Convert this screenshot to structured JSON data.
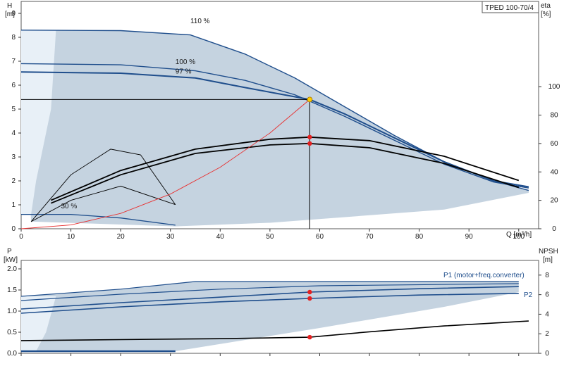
{
  "chart_data": [
    {
      "type": "line",
      "panel": "pump-head-efficiency",
      "title": "TPED 100-70/4",
      "xlabel": "Q [m³/h]",
      "ylabel_left": [
        "H",
        "[m]"
      ],
      "ylabel_right": [
        "eta",
        "[%]"
      ],
      "xlim": [
        0,
        104
      ],
      "ylim_left": [
        0,
        9.5
      ],
      "ylim_right": [
        0,
        160
      ],
      "x_ticks": [
        0,
        10,
        20,
        30,
        40,
        50,
        60,
        70,
        80,
        90,
        100
      ],
      "y_ticks_left": [
        0,
        1,
        2,
        3,
        4,
        5,
        6,
        7,
        8,
        9
      ],
      "y_ticks_right": [
        0,
        20,
        40,
        60,
        80,
        100
      ],
      "zone_color": "#c5d3e0",
      "zone_light_color": "#e8f0f7",
      "curve_color": "#1f4e8c",
      "eff_color": "#000000",
      "system_color": "#e83030",
      "operating_point": {
        "q": 58,
        "h": 5.4,
        "color": "#ffcc00"
      },
      "head_curves": [
        {
          "name": "110 %",
          "points": [
            [
              0,
              8.3
            ],
            [
              20,
              8.28
            ],
            [
              34,
              8.1
            ],
            [
              45,
              7.3
            ],
            [
              55,
              6.3
            ],
            [
              65,
              5.1
            ],
            [
              75,
              3.9
            ],
            [
              85,
              2.8
            ],
            [
              95,
              2.0
            ],
            [
              102,
              1.6
            ]
          ]
        },
        {
          "name": "100 %",
          "points": [
            [
              0,
              6.9
            ],
            [
              20,
              6.85
            ],
            [
              35,
              6.6
            ],
            [
              45,
              6.2
            ],
            [
              55,
              5.6
            ],
            [
              65,
              4.7
            ],
            [
              75,
              3.7
            ],
            [
              85,
              2.7
            ],
            [
              95,
              1.95
            ],
            [
              102,
              1.7
            ]
          ]
        },
        {
          "name": "97 %",
          "points": [
            [
              0,
              6.55
            ],
            [
              20,
              6.5
            ],
            [
              35,
              6.3
            ],
            [
              45,
              5.9
            ],
            [
              58,
              5.4
            ],
            [
              65,
              4.8
            ],
            [
              75,
              3.8
            ],
            [
              85,
              2.8
            ],
            [
              95,
              2.0
            ],
            [
              102,
              1.75
            ]
          ]
        }
      ],
      "low_speed_curve": {
        "name": "30 %",
        "points": [
          [
            0,
            0.6
          ],
          [
            10,
            0.6
          ],
          [
            20,
            0.45
          ],
          [
            31,
            0.15
          ]
        ]
      },
      "efficiency_curves": [
        {
          "points": [
            [
              6,
              20
            ],
            [
              20,
              41
            ],
            [
              35,
              56
            ],
            [
              50,
              63
            ],
            [
              58,
              64.5
            ],
            [
              70,
              62
            ],
            [
              85,
              51
            ],
            [
              100,
              34
            ]
          ]
        },
        {
          "points": [
            [
              6,
              18
            ],
            [
              20,
              38
            ],
            [
              35,
              53
            ],
            [
              50,
              59
            ],
            [
              58,
              60
            ],
            [
              70,
              57
            ],
            [
              85,
              46
            ],
            [
              100,
              29
            ]
          ]
        },
        {
          "points": [
            [
              2,
              5
            ],
            [
              10,
              38
            ],
            [
              18,
              56
            ],
            [
              24,
              52
            ],
            [
              31,
              17
            ]
          ]
        },
        {
          "points": [
            [
              2,
              5
            ],
            [
              10,
              20
            ],
            [
              20,
              30
            ],
            [
              31,
              17
            ]
          ]
        }
      ],
      "efficiency_points": [
        {
          "q": 58,
          "eta": 64.5
        },
        {
          "q": 58,
          "eta": 60
        }
      ],
      "system_curve": {
        "points": [
          [
            0,
            0
          ],
          [
            10,
            0.16
          ],
          [
            20,
            0.64
          ],
          [
            30,
            1.45
          ],
          [
            40,
            2.57
          ],
          [
            50,
            4.0
          ],
          [
            58,
            5.4
          ]
        ]
      }
    },
    {
      "type": "line",
      "panel": "power-npsh",
      "xlim": [
        0,
        104
      ],
      "ylim_left": [
        0,
        2.2
      ],
      "ylim_right": [
        0,
        9.5
      ],
      "ylabel_left": [
        "P",
        "[kW]"
      ],
      "ylabel_right": [
        "NPSH",
        "[m]"
      ],
      "y_ticks_left": [
        0,
        0.5,
        1.0,
        1.5,
        2.0
      ],
      "y_ticks_left_labels": [
        "0.0",
        "0.5",
        "1.0",
        "1.5",
        "2.0"
      ],
      "y_ticks_right": [
        0,
        2,
        4,
        6,
        8
      ],
      "power_curves": [
        {
          "name": "P1 (motor+freq.converter)",
          "points": [
            [
              0,
              1.05
            ],
            [
              20,
              1.2
            ],
            [
              40,
              1.33
            ],
            [
              58,
              1.45
            ],
            [
              80,
              1.53
            ],
            [
              100,
              1.58
            ]
          ]
        },
        {
          "name": "P2",
          "points": [
            [
              0,
              0.95
            ],
            [
              20,
              1.1
            ],
            [
              40,
              1.22
            ],
            [
              58,
              1.3
            ],
            [
              80,
              1.38
            ],
            [
              100,
              1.42
            ]
          ]
        }
      ],
      "upper_power_curves": [
        {
          "points": [
            [
              0,
              1.35
            ],
            [
              20,
              1.52
            ],
            [
              35,
              1.7
            ],
            [
              60,
              1.7
            ],
            [
              100,
              1.7
            ]
          ]
        },
        {
          "points": [
            [
              0,
              1.25
            ],
            [
              20,
              1.4
            ],
            [
              40,
              1.52
            ],
            [
              60,
              1.6
            ],
            [
              100,
              1.65
            ]
          ]
        }
      ],
      "npsh_curve": {
        "points": [
          [
            0,
            1.3
          ],
          [
            20,
            1.4
          ],
          [
            40,
            1.5
          ],
          [
            58,
            1.65
          ],
          [
            70,
            2.2
          ],
          [
            85,
            2.8
          ],
          [
            102,
            3.3
          ]
        ]
      },
      "low_power_curve": {
        "points": [
          [
            0,
            0.05
          ],
          [
            31,
            0.05
          ]
        ]
      },
      "points": [
        {
          "q": 58,
          "p": 1.45
        },
        {
          "q": 58,
          "p": 1.3
        },
        {
          "q": 58,
          "npsh": 1.65
        }
      ]
    }
  ]
}
